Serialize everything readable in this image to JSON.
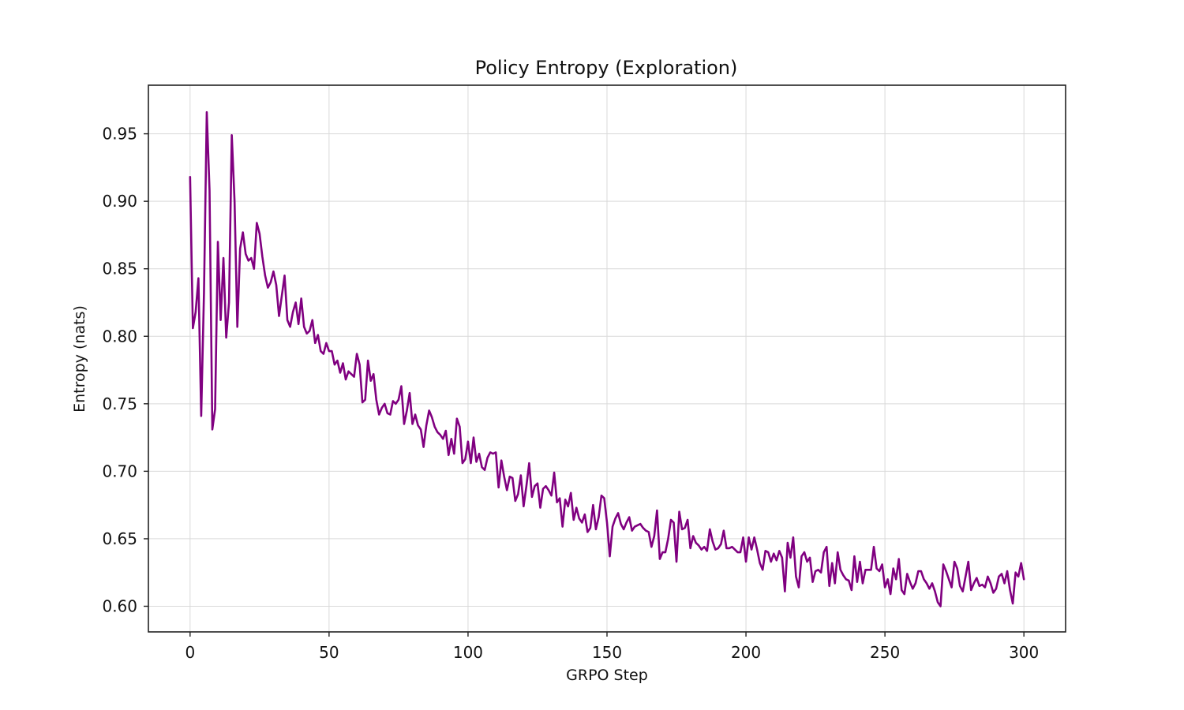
{
  "chart_data": {
    "type": "line",
    "title": "Policy Entropy (Exploration)",
    "xlabel": "GRPO Step",
    "ylabel": "Entropy (nats)",
    "xlim": [
      -15,
      315
    ],
    "ylim": [
      0.581,
      0.986
    ],
    "xticks": [
      0,
      50,
      100,
      150,
      200,
      250,
      300
    ],
    "yticks": [
      0.6,
      0.65,
      0.7,
      0.75,
      0.8,
      0.85,
      0.9,
      0.95
    ],
    "xtick_labels": [
      "0",
      "50",
      "100",
      "150",
      "200",
      "250",
      "300"
    ],
    "ytick_labels": [
      "0.60",
      "0.65",
      "0.70",
      "0.75",
      "0.80",
      "0.85",
      "0.90",
      "0.95"
    ],
    "grid": true,
    "line_color": "#800080",
    "series": [
      {
        "x_start": 0,
        "x_step": 1,
        "values": [
          0.918,
          0.806,
          0.818,
          0.843,
          0.741,
          0.832,
          0.966,
          0.908,
          0.731,
          0.746,
          0.87,
          0.812,
          0.858,
          0.799,
          0.825,
          0.949,
          0.9,
          0.807,
          0.865,
          0.877,
          0.861,
          0.856,
          0.858,
          0.85,
          0.884,
          0.876,
          0.859,
          0.845,
          0.836,
          0.84,
          0.848,
          0.838,
          0.815,
          0.83,
          0.845,
          0.812,
          0.807,
          0.818,
          0.825,
          0.809,
          0.828,
          0.807,
          0.802,
          0.804,
          0.812,
          0.795,
          0.801,
          0.789,
          0.787,
          0.795,
          0.789,
          0.789,
          0.779,
          0.782,
          0.773,
          0.78,
          0.768,
          0.774,
          0.772,
          0.77,
          0.787,
          0.779,
          0.751,
          0.753,
          0.782,
          0.767,
          0.772,
          0.753,
          0.742,
          0.747,
          0.75,
          0.743,
          0.742,
          0.752,
          0.75,
          0.753,
          0.763,
          0.735,
          0.745,
          0.758,
          0.735,
          0.742,
          0.734,
          0.731,
          0.718,
          0.734,
          0.745,
          0.74,
          0.733,
          0.729,
          0.727,
          0.724,
          0.73,
          0.712,
          0.724,
          0.713,
          0.739,
          0.733,
          0.706,
          0.709,
          0.722,
          0.706,
          0.725,
          0.707,
          0.713,
          0.703,
          0.701,
          0.71,
          0.714,
          0.713,
          0.714,
          0.688,
          0.708,
          0.696,
          0.686,
          0.696,
          0.695,
          0.678,
          0.683,
          0.697,
          0.674,
          0.689,
          0.706,
          0.681,
          0.689,
          0.691,
          0.673,
          0.687,
          0.689,
          0.686,
          0.682,
          0.699,
          0.677,
          0.68,
          0.659,
          0.679,
          0.674,
          0.684,
          0.664,
          0.673,
          0.665,
          0.662,
          0.668,
          0.655,
          0.658,
          0.675,
          0.657,
          0.666,
          0.682,
          0.68,
          0.662,
          0.637,
          0.659,
          0.665,
          0.669,
          0.661,
          0.657,
          0.662,
          0.666,
          0.656,
          0.659,
          0.66,
          0.661,
          0.658,
          0.656,
          0.655,
          0.644,
          0.652,
          0.671,
          0.635,
          0.64,
          0.64,
          0.65,
          0.664,
          0.662,
          0.633,
          0.67,
          0.657,
          0.658,
          0.664,
          0.643,
          0.652,
          0.647,
          0.645,
          0.642,
          0.644,
          0.641,
          0.657,
          0.648,
          0.642,
          0.643,
          0.646,
          0.656,
          0.643,
          0.643,
          0.644,
          0.642,
          0.64,
          0.64,
          0.651,
          0.633,
          0.651,
          0.642,
          0.651,
          0.642,
          0.632,
          0.627,
          0.641,
          0.64,
          0.633,
          0.639,
          0.634,
          0.641,
          0.636,
          0.611,
          0.647,
          0.636,
          0.651,
          0.622,
          0.614,
          0.637,
          0.64,
          0.633,
          0.636,
          0.618,
          0.626,
          0.627,
          0.625,
          0.64,
          0.644,
          0.615,
          0.632,
          0.617,
          0.64,
          0.627,
          0.623,
          0.62,
          0.619,
          0.612,
          0.637,
          0.618,
          0.633,
          0.617,
          0.627,
          0.627,
          0.627,
          0.644,
          0.628,
          0.626,
          0.631,
          0.614,
          0.62,
          0.609,
          0.628,
          0.62,
          0.635,
          0.612,
          0.609,
          0.624,
          0.618,
          0.613,
          0.617,
          0.626,
          0.626,
          0.62,
          0.617,
          0.613,
          0.617,
          0.611,
          0.603,
          0.6,
          0.631,
          0.626,
          0.62,
          0.614,
          0.633,
          0.628,
          0.615,
          0.611,
          0.622,
          0.633,
          0.612,
          0.617,
          0.621,
          0.615,
          0.616,
          0.614,
          0.622,
          0.617,
          0.61,
          0.613,
          0.622,
          0.624,
          0.617,
          0.626,
          0.612,
          0.602,
          0.625,
          0.622,
          0.632,
          0.62
        ]
      }
    ]
  }
}
